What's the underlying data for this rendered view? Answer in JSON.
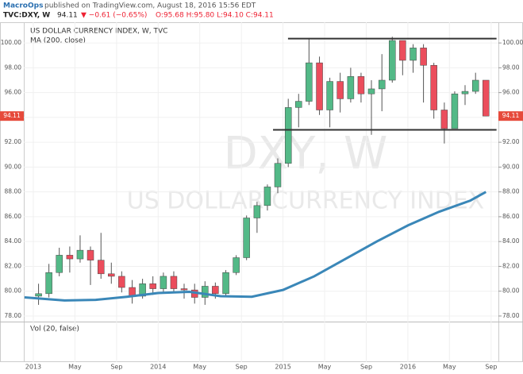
{
  "header": {
    "author": "MacroOps",
    "published": "published on TradingView.com, August 18, 2016 15:56 EDT",
    "symbol": "TVC:DXY, W",
    "change": "▼ −0.61 (−0.65%)",
    "ohlc": "O:95.68 H:95.80 L:94.10 C:94.11"
  },
  "chart_data": {
    "type": "candlestick",
    "title": "US DOLLAR CURRENCY INDEX, W, TVC",
    "watermark": "DXY, W",
    "watermark_subtitle": "US DOLLAR CURRENCY INDEX",
    "indicator": "MA (200, close)",
    "volume_pane": "Vol (20, false)",
    "last_price": 94.11,
    "up_color": "#53b987",
    "down_color": "#eb4d5c",
    "ma_color": "#3a87b8",
    "xlim": [
      2012.924,
      2016.725
    ],
    "ylim": [
      77.55,
      101.67
    ],
    "xticks": [
      {
        "value": 2013,
        "label": "2013"
      },
      {
        "value": 2013.333,
        "label": "May"
      },
      {
        "value": 2013.667,
        "label": "Sep"
      },
      {
        "value": 2014,
        "label": "2014"
      },
      {
        "value": 2014.333,
        "label": "May"
      },
      {
        "value": 2014.667,
        "label": "Sep"
      },
      {
        "value": 2015,
        "label": "2015"
      },
      {
        "value": 2015.333,
        "label": "May"
      },
      {
        "value": 2015.667,
        "label": "Sep"
      },
      {
        "value": 2016,
        "label": "2016"
      },
      {
        "value": 2016.333,
        "label": "May"
      },
      {
        "value": 2016.667,
        "label": "Sep"
      }
    ],
    "yticks": [
      {
        "value": 78,
        "label": "78.00"
      },
      {
        "value": 80,
        "label": "80.00"
      },
      {
        "value": 82,
        "label": "82.00"
      },
      {
        "value": 84,
        "label": "84.00"
      },
      {
        "value": 86,
        "label": "86.00"
      },
      {
        "value": 88,
        "label": "88.00"
      },
      {
        "value": 90,
        "label": "90.00"
      },
      {
        "value": 92,
        "label": "92.00"
      },
      {
        "value": 94,
        "label": "94.00"
      },
      {
        "value": 96,
        "label": "96.00"
      },
      {
        "value": 98,
        "label": "98.00"
      },
      {
        "value": 100,
        "label": "100.00"
      }
    ],
    "candles": {
      "x": [
        2013.042,
        2013.125,
        2013.208,
        2013.292,
        2013.375,
        2013.458,
        2013.542,
        2013.625,
        2013.708,
        2013.792,
        2013.875,
        2013.958,
        2014.042,
        2014.125,
        2014.208,
        2014.292,
        2014.375,
        2014.458,
        2014.542,
        2014.625,
        2014.708,
        2014.792,
        2014.875,
        2014.958,
        2015.042,
        2015.125,
        2015.208,
        2015.292,
        2015.375,
        2015.458,
        2015.542,
        2015.625,
        2015.708,
        2015.792,
        2015.875,
        2015.958,
        2016.042,
        2016.125,
        2016.208,
        2016.292,
        2016.375,
        2016.458,
        2016.542,
        2016.625
      ],
      "open": [
        79.6,
        79.8,
        81.5,
        82.9,
        82.6,
        83.3,
        82.5,
        81.4,
        81.2,
        80.3,
        79.6,
        80.6,
        80.2,
        81.2,
        80.2,
        80.1,
        79.5,
        80.4,
        79.8,
        81.5,
        82.7,
        85.9,
        86.9,
        88.4,
        90.3,
        94.8,
        95.3,
        98.4,
        94.6,
        96.9,
        95.5,
        97.3,
        95.9,
        96.3,
        97.0,
        100.2,
        98.6,
        99.6,
        98.2,
        94.6,
        93.1,
        95.9,
        96.1,
        97.0
      ],
      "high": [
        80.6,
        82.2,
        83.5,
        83.6,
        84.5,
        83.6,
        84.7,
        82.3,
        81.6,
        80.9,
        81.0,
        81.2,
        81.5,
        81.6,
        80.6,
        80.6,
        80.8,
        80.7,
        81.7,
        82.9,
        86.1,
        87.2,
        88.6,
        90.7,
        95.5,
        95.9,
        100.4,
        98.9,
        97.2,
        97.6,
        98.0,
        97.6,
        97.0,
        99.1,
        100.5,
        100.2,
        99.9,
        99.9,
        98.4,
        95.2,
        96.1,
        96.6,
        97.6,
        97.0
      ],
      "low": [
        78.9,
        79.5,
        81.2,
        81.5,
        82.3,
        80.5,
        81.0,
        80.6,
        79.9,
        79.0,
        79.4,
        79.7,
        79.9,
        79.9,
        79.4,
        79.0,
        78.9,
        79.4,
        79.6,
        81.3,
        82.5,
        84.7,
        86.5,
        87.9,
        90.0,
        93.2,
        95.0,
        94.2,
        93.2,
        94.4,
        95.2,
        95.2,
        92.6,
        94.5,
        96.8,
        97.4,
        97.6,
        95.2,
        93.9,
        91.9,
        93.2,
        95.0,
        95.9,
        94.1
      ],
      "close": [
        79.8,
        81.5,
        82.9,
        82.6,
        83.3,
        82.5,
        81.4,
        81.2,
        80.3,
        79.6,
        80.6,
        80.2,
        81.2,
        80.2,
        80.1,
        79.5,
        80.4,
        79.8,
        81.5,
        82.7,
        85.9,
        86.9,
        88.4,
        90.3,
        94.8,
        95.3,
        98.4,
        94.6,
        96.9,
        95.5,
        97.3,
        95.9,
        96.3,
        97.0,
        100.2,
        98.6,
        99.6,
        98.2,
        94.6,
        93.1,
        95.9,
        96.1,
        97.0,
        94.11
      ]
    },
    "ma": {
      "x": [
        2012.93,
        2013.25,
        2013.5,
        2013.75,
        2014.0,
        2014.25,
        2014.5,
        2014.75,
        2015.0,
        2015.25,
        2015.5,
        2015.75,
        2016.0,
        2016.25,
        2016.5,
        2016.625
      ],
      "values": [
        79.5,
        79.25,
        79.3,
        79.55,
        79.85,
        79.95,
        79.6,
        79.55,
        80.1,
        81.2,
        82.6,
        84.0,
        85.3,
        86.4,
        87.3,
        88.0
      ]
    },
    "levels": [
      {
        "value": 100.35,
        "x": [
          2015.04,
          2016.71
        ]
      },
      {
        "value": 93.0,
        "x": [
          2014.92,
          2016.71
        ]
      }
    ]
  }
}
